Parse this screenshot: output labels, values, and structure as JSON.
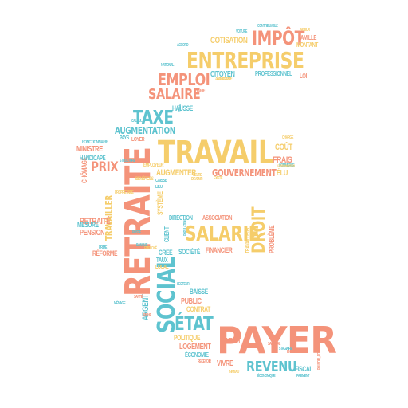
{
  "colors": {
    "orange": "#f4937a",
    "yellow": "#f5cd6b",
    "teal": "#5ec3cf",
    "bg": "#ffffff"
  },
  "words": [
    {
      "text": "PAYER",
      "color": "orange"
    },
    {
      "text": "RETRAITE",
      "color": "orange"
    },
    {
      "text": "TRAVAIL",
      "color": "yellow"
    },
    {
      "text": "ENTREPRISE",
      "color": "yellow"
    },
    {
      "text": "SALARIÉ",
      "color": "yellow"
    },
    {
      "text": "SOCIAL",
      "color": "teal"
    },
    {
      "text": "ÉTAT",
      "color": "teal"
    },
    {
      "text": "IMPÔT",
      "color": "orange"
    },
    {
      "text": "EMPLOI",
      "color": "orange"
    },
    {
      "text": "SALAIRE",
      "color": "orange"
    },
    {
      "text": "TAXE",
      "color": "teal"
    },
    {
      "text": "DROIT",
      "color": "yellow"
    },
    {
      "text": "REVENU",
      "color": "teal"
    },
    {
      "text": "PRIX",
      "color": "orange"
    },
    {
      "text": "AUGMENTATION",
      "color": "teal"
    },
    {
      "text": "AUGMENTER",
      "color": "yellow"
    },
    {
      "text": "GOUVERNEMENT",
      "color": "orange"
    },
    {
      "text": "TRAVAILLER",
      "color": "yellow"
    },
    {
      "text": "RETRAITÉ",
      "color": "orange"
    },
    {
      "text": "PENSION",
      "color": "orange"
    },
    {
      "text": "MESURE",
      "color": "teal"
    },
    {
      "text": "RÉFORME",
      "color": "orange"
    },
    {
      "text": "CHÔMAGE",
      "color": "orange"
    },
    {
      "text": "MINISTRE",
      "color": "orange"
    },
    {
      "text": "HANDICAPÉ",
      "color": "teal"
    },
    {
      "text": "FRAIS",
      "color": "orange"
    },
    {
      "text": "COÛT",
      "color": "yellow"
    },
    {
      "text": "ÉLU",
      "color": "yellow"
    },
    {
      "text": "COTISATION",
      "color": "yellow"
    },
    {
      "text": "CITOYEN",
      "color": "teal"
    },
    {
      "text": "PROFESSIONNEL",
      "color": "teal"
    },
    {
      "text": "FAMILLE",
      "color": "orange"
    },
    {
      "text": "MONTANT",
      "color": "yellow"
    },
    {
      "text": "LOI",
      "color": "orange"
    },
    {
      "text": "HAUSSE",
      "color": "teal"
    },
    {
      "text": "LOYER",
      "color": "orange"
    },
    {
      "text": "PAYS",
      "color": "teal"
    },
    {
      "text": "FONCTIONNAIRE",
      "color": "teal"
    },
    {
      "text": "ARGENT",
      "color": "teal"
    },
    {
      "text": "PUBLIC",
      "color": "orange"
    },
    {
      "text": "CONTRAT",
      "color": "yellow"
    },
    {
      "text": "POLITIQUE",
      "color": "yellow"
    },
    {
      "text": "LOGEMENT",
      "color": "orange"
    },
    {
      "text": "ÉCONOMIE",
      "color": "teal"
    },
    {
      "text": "VIVRE",
      "color": "orange"
    },
    {
      "text": "ENFANT",
      "color": "orange"
    },
    {
      "text": "FISCAL",
      "color": "teal"
    },
    {
      "text": "BAISSE",
      "color": "teal"
    },
    {
      "text": "SOCIÉTÉ",
      "color": "teal"
    },
    {
      "text": "FINANCIER",
      "color": "orange"
    },
    {
      "text": "CRÉÉ",
      "color": "teal"
    },
    {
      "text": "TAUX",
      "color": "teal"
    },
    {
      "text": "LOCAL",
      "color": "yellow"
    },
    {
      "text": "DIRECTION",
      "color": "teal"
    },
    {
      "text": "ASSOCIATION",
      "color": "orange"
    },
    {
      "text": "SYSTÈME",
      "color": "yellow"
    },
    {
      "text": "CLIENT",
      "color": "teal"
    },
    {
      "text": "TRAVAILLEUR",
      "color": "yellow"
    },
    {
      "text": "PROBLÈME",
      "color": "orange"
    },
    {
      "text": "EMPLOYEUR",
      "color": "yellow"
    },
    {
      "text": "BÉNÉFICES",
      "color": "yellow"
    },
    {
      "text": "CAISSE",
      "color": "teal"
    },
    {
      "text": "LIEU",
      "color": "teal"
    },
    {
      "text": "PROPRIÉTAIRE",
      "color": "yellow"
    },
    {
      "text": "STRUCTURE",
      "color": "teal"
    },
    {
      "text": "DEVENIR",
      "color": "yellow"
    },
    {
      "text": "HEURE",
      "color": "yellow"
    },
    {
      "text": "ADHÉRENT",
      "color": "yellow"
    },
    {
      "text": "AVANTAGE",
      "color": "yellow"
    },
    {
      "text": "TARIF",
      "color": "orange"
    },
    {
      "text": "NATIONAL",
      "color": "teal"
    },
    {
      "text": "ACCORD",
      "color": "teal"
    },
    {
      "text": "VOITURE",
      "color": "teal"
    },
    {
      "text": "CONTRIBUABLE",
      "color": "teal"
    },
    {
      "text": "PAYEUR",
      "color": "yellow"
    },
    {
      "text": "POSTE",
      "color": "teal"
    },
    {
      "text": "BANQUE",
      "color": "teal"
    },
    {
      "text": "POPULATION",
      "color": "teal"
    },
    {
      "text": "EMPLOYÉ",
      "color": "yellow"
    },
    {
      "text": "EXISTE",
      "color": "yellow"
    },
    {
      "text": "RECEVOIR",
      "color": "orange"
    },
    {
      "text": "NIVEAU",
      "color": "yellow"
    },
    {
      "text": "POUVOIR_ACHAT",
      "color": "orange"
    },
    {
      "text": "ÉCONOMIQUE",
      "color": "teal"
    },
    {
      "text": "ÉNERGIE",
      "color": "orange"
    },
    {
      "text": "PAIEMENT",
      "color": "teal"
    },
    {
      "text": "SANTÉ",
      "color": "orange"
    },
    {
      "text": "SECTEUR",
      "color": "teal"
    },
    {
      "text": "SALARIAL",
      "color": "orange"
    },
    {
      "text": "STAGIAIRE",
      "color": "teal"
    },
    {
      "text": "RICHE",
      "color": "orange"
    },
    {
      "text": "PRIME",
      "color": "teal"
    },
    {
      "text": "COMMERCE",
      "color": "teal"
    },
    {
      "text": "CONSOMMATEUR",
      "color": "yellow"
    },
    {
      "text": "CHARGE",
      "color": "yellow"
    },
    {
      "text": "VILLE",
      "color": "teal"
    },
    {
      "text": "MÉNAGE",
      "color": "teal"
    },
    {
      "text": "CALCUL",
      "color": "teal"
    }
  ]
}
